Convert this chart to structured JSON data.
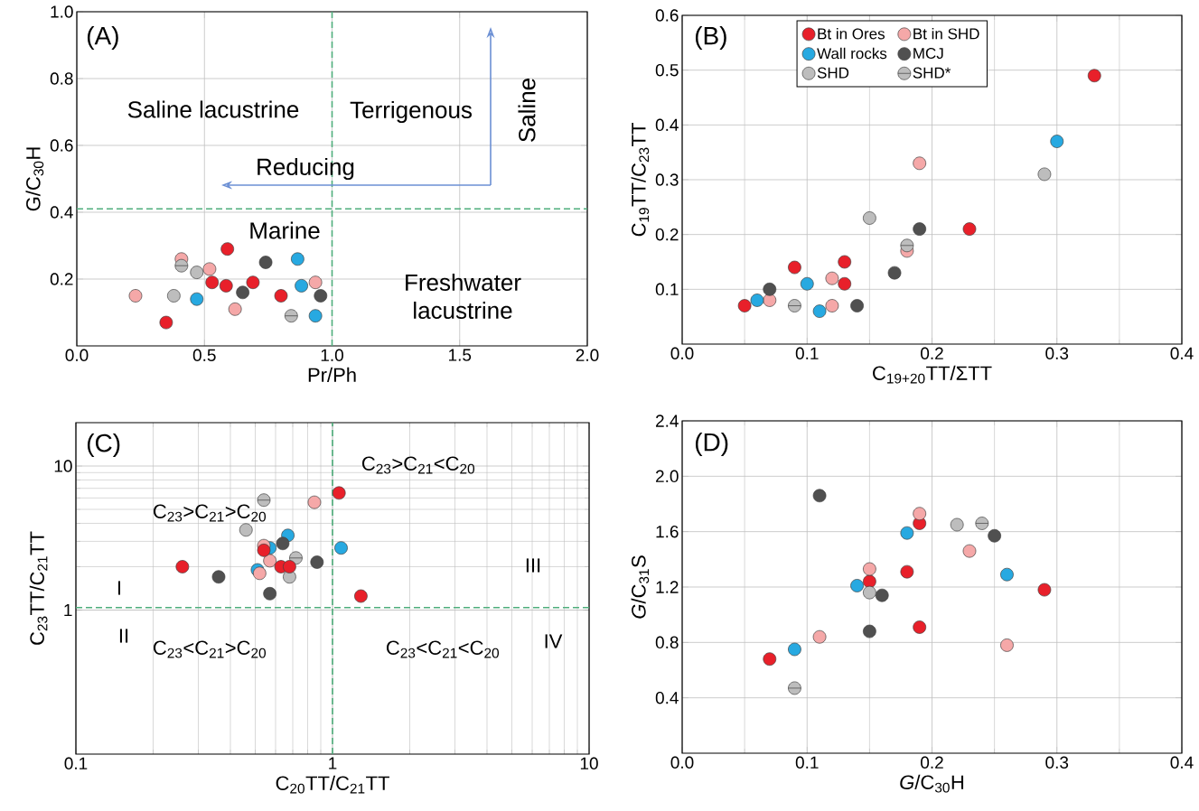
{
  "chart_data": [
    {
      "type": "scatter",
      "xlabel": "Pr/Ph",
      "ylabel": "G/C$_{30}$H",
      "marker": "circle",
      "grid": true,
      "xlim": [
        0,
        2
      ],
      "ylim": [
        0,
        1
      ],
      "xticks": [
        {
          "value": 0,
          "label": "0.0"
        },
        0.5,
        {
          "value": 1,
          "label": "1.0"
        },
        1.5,
        {
          "value": 2,
          "label": "2.0"
        }
      ],
      "yticks": [
        0.2,
        0.4,
        0.6,
        0.8,
        {
          "value": 1,
          "label": "1.0"
        }
      ],
      "annotations": [
        "(A)",
        "Saline lacustrine",
        "Terrigenous",
        "Saline",
        "Reducing",
        "Marine",
        "Freshwater lacustrine"
      ],
      "ref_lines": [
        {
          "axis": "x",
          "value": 1,
          "color": "#4fae7c",
          "line_style": "dashed"
        },
        {
          "axis": "y",
          "value": 0.41,
          "color": "#4fae7c",
          "line_style": "dashed"
        }
      ],
      "series": [
        {
          "color": "#e8202a",
          "x": [
            0.35,
            0.53,
            0.585,
            0.59,
            0.69,
            0.8
          ],
          "values": [
            0.07,
            0.19,
            0.18,
            0.29,
            0.19,
            0.15
          ]
        },
        {
          "color": "#f5a8a8",
          "x": [
            0.23,
            0.41,
            0.52,
            0.62,
            0.935
          ],
          "values": [
            0.15,
            0.26,
            0.23,
            0.11,
            0.19
          ]
        },
        {
          "color": "#27a9e1",
          "x": [
            0.47,
            0.865,
            0.88,
            0.935
          ],
          "values": [
            0.14,
            0.26,
            0.18,
            0.09
          ]
        },
        {
          "color": "#505050",
          "x": [
            0.65,
            0.74,
            0.955
          ],
          "values": [
            0.16,
            0.25,
            0.15
          ]
        },
        {
          "color": "#bdbdbd",
          "x": [
            0.38,
            0.47
          ],
          "values": [
            0.15,
            0.22
          ]
        },
        {
          "color": "#bdbdbd",
          "x": [
            0.41,
            0.84
          ],
          "values": [
            0.24,
            0.09
          ]
        }
      ]
    },
    {
      "type": "scatter",
      "xlabel": "C$_{19+20}$TT/ΣTT",
      "ylabel": "C$_{19}$TT/C$_{23}$TT",
      "marker": "circle",
      "grid": true,
      "legend": "top",
      "xlim": [
        0,
        0.4
      ],
      "ylim": [
        0,
        0.6
      ],
      "xticks": [
        {
          "value": 0,
          "label": "0.0"
        },
        {
          "value": 0.05,
          "label": null
        },
        0.1,
        {
          "value": 0.15,
          "label": null
        },
        0.2,
        {
          "value": 0.25,
          "label": null
        },
        0.3,
        {
          "value": 0.35,
          "label": null
        },
        0.4
      ],
      "yticks": [
        0.1,
        0.2,
        0.3,
        0.4,
        0.5,
        0.6
      ],
      "annotations": [
        "(B)"
      ],
      "series": [
        {
          "name": "Bt in Ores",
          "color": "#e8202a",
          "x": [
            0.05,
            0.09,
            0.13,
            0.13,
            0.23,
            0.33
          ],
          "values": [
            0.07,
            0.14,
            0.15,
            0.11,
            0.21,
            0.49
          ]
        },
        {
          "name": "Bt in SHD",
          "color": "#f5a8a8",
          "x": [
            0.07,
            0.12,
            0.12,
            0.18,
            0.19
          ],
          "values": [
            0.08,
            0.12,
            0.07,
            0.17,
            0.33
          ]
        },
        {
          "name": "Wall rocks",
          "color": "#27a9e1",
          "x": [
            0.06,
            0.1,
            0.11,
            0.3
          ],
          "values": [
            0.08,
            0.11,
            0.06,
            0.37
          ]
        },
        {
          "name": "MCJ",
          "color": "#505050",
          "x": [
            0.07,
            0.14,
            0.17,
            0.19
          ],
          "values": [
            0.1,
            0.07,
            0.13,
            0.21
          ]
        },
        {
          "name": "SHD",
          "color": "#bdbdbd",
          "x": [
            0.15,
            0.29
          ],
          "values": [
            0.23,
            0.31
          ]
        },
        {
          "name": "SHD*",
          "color": "#bdbdbd",
          "x": [
            0.09,
            0.18
          ],
          "values": [
            0.07,
            0.18
          ]
        }
      ]
    },
    {
      "type": "scatter",
      "xlabel": "C$_{20}$TT/C$_{21}$TT",
      "ylabel": "C$_{23}$TT/C$_{21}$TT",
      "marker": "circle",
      "grid": true,
      "log": "xy",
      "xlim": [
        0.1,
        10
      ],
      "ylim": [
        0.1,
        20
      ],
      "xticks": [
        0.1,
        1,
        10
      ],
      "yticks": [
        1,
        10
      ],
      "annotations": [
        "(C)",
        "C$_{23}$>C$_{21}$<C$_{20}$",
        "C$_{23}$>C$_{21}$>C$_{20}$",
        "I",
        "II",
        "III",
        "IV",
        "C$_{23}$<C$_{21}$>C$_{20}$",
        "C$_{23}$<C$_{21}$<C$_{20}$"
      ],
      "ref_lines": [
        {
          "axis": "x",
          "value": 1,
          "color": "#4fae7c",
          "line_style": "dashed"
        },
        {
          "axis": "y",
          "value": 1.04,
          "color": "#4fae7c",
          "line_style": "dashed"
        }
      ],
      "series": [
        {
          "color": "#27a9e1",
          "x": [
            0.67,
            0.57,
            1.08,
            0.51
          ],
          "values": [
            3.3,
            2.7,
            2.7,
            1.9
          ]
        },
        {
          "color": "#505050",
          "x": [
            0.64,
            0.87,
            0.36,
            0.57
          ],
          "values": [
            2.9,
            2.15,
            1.7,
            1.3
          ]
        },
        {
          "color": "#bdbdbd",
          "x": [
            0.46,
            0.68
          ],
          "values": [
            3.6,
            1.7
          ]
        },
        {
          "color": "#bdbdbd",
          "x": [
            0.54,
            0.72
          ],
          "values": [
            5.8,
            2.3
          ]
        },
        {
          "color": "#f5a8a8",
          "x": [
            0.85,
            0.54,
            0.57,
            0.52
          ],
          "values": [
            5.6,
            2.8,
            2.2,
            1.8
          ]
        },
        {
          "color": "#e8202a",
          "x": [
            1.06,
            0.54,
            0.63,
            0.68,
            0.26,
            1.29
          ],
          "values": [
            6.5,
            2.6,
            2.0,
            2.0,
            2.0,
            1.25
          ]
        }
      ]
    },
    {
      "type": "scatter",
      "xlabel": "*G*/C$_{30}$H",
      "ylabel": "*G*/C$_{31}$S",
      "marker": "circle",
      "grid": true,
      "xlim": [
        0,
        0.4
      ],
      "ylim": [
        0,
        2.4
      ],
      "xticks": [
        {
          "value": 0,
          "label": "0.0"
        },
        {
          "value": 0.05,
          "label": null
        },
        0.1,
        {
          "value": 0.15,
          "label": null
        },
        0.2,
        {
          "value": 0.25,
          "label": null
        },
        0.3,
        {
          "value": 0.35,
          "label": null
        },
        0.4
      ],
      "yticks": [
        0.4,
        0.8,
        1.2,
        1.6,
        {
          "value": 2,
          "label": "2.0"
        },
        2.4
      ],
      "annotations": [
        "(D)"
      ],
      "series": [
        {
          "color": "#e8202a",
          "x": [
            0.19,
            0.29,
            0.15,
            0.18,
            0.19,
            0.07
          ],
          "values": [
            1.66,
            1.18,
            1.24,
            1.31,
            0.91,
            0.68
          ]
        },
        {
          "color": "#f5a8a8",
          "x": [
            0.19,
            0.23,
            0.15,
            0.11,
            0.26
          ],
          "values": [
            1.73,
            1.46,
            1.33,
            0.84,
            0.78
          ]
        },
        {
          "color": "#27a9e1",
          "x": [
            0.18,
            0.26,
            0.14,
            0.09
          ],
          "values": [
            1.59,
            1.29,
            1.21,
            0.75
          ]
        },
        {
          "color": "#505050",
          "x": [
            0.11,
            0.25,
            0.16,
            0.15
          ],
          "values": [
            1.86,
            1.57,
            1.14,
            0.88
          ]
        },
        {
          "color": "#bdbdbd",
          "x": [
            0.22,
            0.15
          ],
          "values": [
            1.65,
            1.16
          ]
        },
        {
          "color": "#bdbdbd",
          "x": [
            0.24,
            0.09
          ],
          "values": [
            1.66,
            0.47
          ]
        }
      ]
    }
  ]
}
